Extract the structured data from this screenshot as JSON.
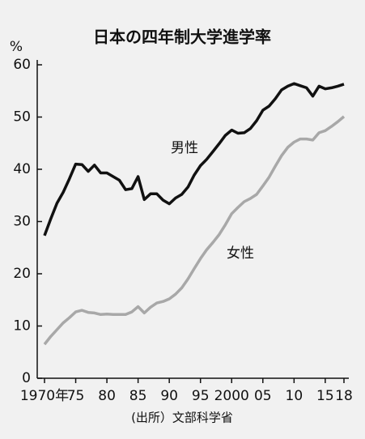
{
  "chart_data": {
    "type": "line",
    "title": "日本の四年制大学進学率",
    "y_label": "%",
    "source": "(出所）文部科学省",
    "x": [
      1970,
      1971,
      1972,
      1973,
      1974,
      1975,
      1976,
      1977,
      1978,
      1979,
      1980,
      1981,
      1982,
      1983,
      1984,
      1985,
      1986,
      1987,
      1988,
      1989,
      1990,
      1991,
      1992,
      1993,
      1994,
      1995,
      1996,
      1997,
      1998,
      1999,
      2000,
      2001,
      2002,
      2003,
      2004,
      2005,
      2006,
      2007,
      2008,
      2009,
      2010,
      2011,
      2012,
      2013,
      2014,
      2015,
      2016,
      2017,
      2018
    ],
    "series": [
      {
        "name": "男性",
        "color": "#111111",
        "values": [
          27.3,
          30.5,
          33.5,
          35.6,
          38.2,
          41.0,
          40.9,
          39.6,
          40.8,
          39.3,
          39.3,
          38.6,
          37.9,
          36.1,
          36.3,
          38.6,
          34.2,
          35.3,
          35.3,
          34.1,
          33.4,
          34.5,
          35.2,
          36.6,
          38.9,
          40.7,
          41.9,
          43.4,
          44.9,
          46.5,
          47.5,
          46.9,
          47.0,
          47.8,
          49.3,
          51.3,
          52.1,
          53.5,
          55.2,
          55.9,
          56.4,
          56.0,
          55.6,
          54.0,
          55.9,
          55.4,
          55.6,
          55.9,
          56.3
        ]
      },
      {
        "name": "女性",
        "color": "#a8a8a8",
        "values": [
          6.5,
          8.0,
          9.3,
          10.6,
          11.6,
          12.7,
          13.0,
          12.6,
          12.5,
          12.2,
          12.3,
          12.2,
          12.2,
          12.2,
          12.7,
          13.7,
          12.5,
          13.6,
          14.4,
          14.7,
          15.2,
          16.1,
          17.3,
          19.0,
          21.0,
          22.9,
          24.6,
          26.0,
          27.5,
          29.4,
          31.5,
          32.7,
          33.8,
          34.4,
          35.2,
          36.8,
          38.5,
          40.6,
          42.6,
          44.2,
          45.2,
          45.8,
          45.8,
          45.6,
          47.0,
          47.4,
          48.2,
          49.1,
          50.1
        ]
      }
    ],
    "xlim": [
      1970,
      2018
    ],
    "xticks": [
      {
        "value": 1970,
        "label": "1970年"
      },
      {
        "value": 1975,
        "label": "75"
      },
      {
        "value": 1980,
        "label": "80"
      },
      {
        "value": 1985,
        "label": "85"
      },
      {
        "value": 1990,
        "label": "90"
      },
      {
        "value": 1995,
        "label": "95"
      },
      2000,
      {
        "value": 2005,
        "label": "05"
      },
      {
        "value": 2010,
        "label": "10"
      },
      {
        "value": 2015,
        "label": "15"
      },
      {
        "value": 2018,
        "label": "18"
      }
    ],
    "ylim": [
      0,
      60
    ],
    "yticks": [
      0,
      10,
      20,
      30,
      40,
      50,
      60
    ],
    "grid": false
  }
}
